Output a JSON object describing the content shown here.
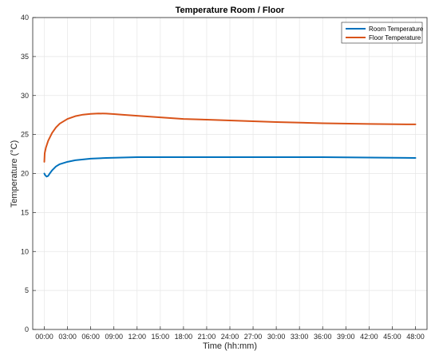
{
  "chart_data": {
    "type": "line",
    "title": "Temperature Room / Floor",
    "xlabel": "Time (hh:mm)",
    "ylabel": "Temperature (°C)",
    "xlim": [
      -1.5,
      49.5
    ],
    "ylim": [
      0,
      40
    ],
    "x_ticks": [
      0,
      3,
      6,
      9,
      12,
      15,
      18,
      21,
      24,
      27,
      30,
      33,
      36,
      39,
      42,
      45,
      48
    ],
    "x_tick_labels": [
      "00:00",
      "03:00",
      "06:00",
      "09:00",
      "12:00",
      "15:00",
      "18:00",
      "21:00",
      "24:00",
      "27:00",
      "30:00",
      "33:00",
      "36:00",
      "39:00",
      "42:00",
      "45:00",
      "48:00"
    ],
    "y_ticks": [
      0,
      5,
      10,
      15,
      20,
      25,
      30,
      35,
      40
    ],
    "y_tick_labels": [
      "0",
      "5",
      "10",
      "15",
      "20",
      "25",
      "30",
      "35",
      "40"
    ],
    "grid": true,
    "legend_position": "top-right",
    "series": [
      {
        "name": "Room Temperature",
        "color": "#0072BD",
        "x": [
          0,
          0.1,
          0.3,
          0.5,
          0.7,
          1,
          1.5,
          2,
          3,
          4,
          5,
          6,
          8,
          10,
          12,
          15,
          18,
          21,
          24,
          30,
          36,
          42,
          48
        ],
        "y": [
          20.0,
          19.8,
          19.6,
          19.7,
          20.0,
          20.4,
          20.9,
          21.2,
          21.5,
          21.7,
          21.8,
          21.9,
          22.0,
          22.05,
          22.1,
          22.1,
          22.1,
          22.1,
          22.1,
          22.1,
          22.1,
          22.05,
          22.0
        ]
      },
      {
        "name": "Floor Temperature",
        "color": "#D95319",
        "x": [
          0,
          0.05,
          0.2,
          0.5,
          1,
          1.5,
          2,
          3,
          4,
          5,
          6,
          7,
          8,
          9,
          10,
          12,
          15,
          18,
          21,
          24,
          30,
          36,
          42,
          48
        ],
        "y": [
          21.5,
          22.6,
          23.3,
          24.2,
          25.2,
          25.9,
          26.4,
          27.0,
          27.35,
          27.55,
          27.65,
          27.7,
          27.68,
          27.62,
          27.55,
          27.4,
          27.2,
          27.0,
          26.9,
          26.8,
          26.6,
          26.45,
          26.35,
          26.3
        ]
      }
    ]
  }
}
